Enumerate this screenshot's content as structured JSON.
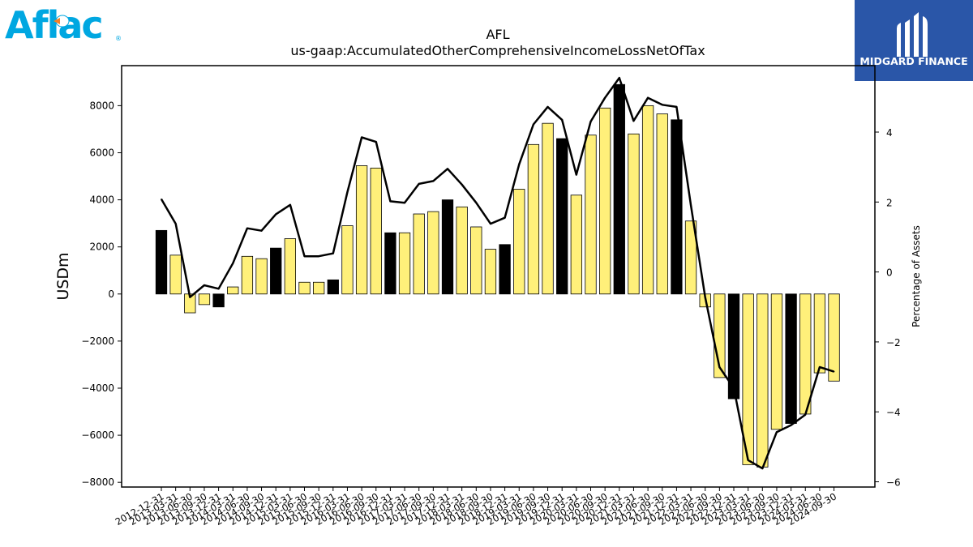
{
  "header": {
    "left_logo_text": "Aflac",
    "right_logo_text": "MIDGARD FINANCE"
  },
  "colors": {
    "bar_yellow": "#fff07a",
    "bar_black": "#000000",
    "line": "#000000",
    "midgard_bg": "#2a56a8",
    "aflac_blue": "#00a7e1",
    "aflac_orange": "#f58025"
  },
  "chart_data": {
    "type": "bar",
    "title": "AFL",
    "subtitle": "us-gaap:AccumulatedOtherComprehensiveIncomeLossNetOfTax",
    "ylabel": "USDm",
    "y2label": "Percentage of Assets",
    "ylim": [
      -8200,
      9700
    ],
    "y2lim": [
      -6.15,
      5.9
    ],
    "yticks": [
      -8000,
      -6000,
      -4000,
      -2000,
      0,
      2000,
      4000,
      6000,
      8000
    ],
    "y2ticks": [
      -6,
      -4,
      -2,
      0,
      2,
      4
    ],
    "grid": false,
    "categories": [
      "2012-12-31",
      "2013-03-31",
      "2013-06-30",
      "2013-09-30",
      "2013-12-31",
      "2014-03-31",
      "2014-06-30",
      "2014-09-30",
      "2014-12-31",
      "2015-03-31",
      "2015-06-30",
      "2015-09-30",
      "2015-12-31",
      "2016-03-31",
      "2016-06-30",
      "2016-09-30",
      "2016-12-31",
      "2017-03-31",
      "2017-06-30",
      "2017-09-30",
      "2017-12-31",
      "2018-03-31",
      "2018-06-30",
      "2018-09-30",
      "2018-12-31",
      "2019-03-31",
      "2019-06-30",
      "2019-09-30",
      "2019-12-31",
      "2020-03-31",
      "2020-06-30",
      "2020-09-30",
      "2020-12-31",
      "2021-03-31",
      "2021-06-30",
      "2021-09-30",
      "2021-12-31",
      "2022-03-31",
      "2022-06-30",
      "2022-09-30",
      "2022-12-31",
      "2023-03-31",
      "2023-06-30",
      "2023-09-30",
      "2023-12-31",
      "2024-03-31",
      "2024-06-30",
      "2024-09-30"
    ],
    "series": [
      {
        "type": "bar",
        "values": [
          2700,
          1650,
          -800,
          -450,
          -550,
          300,
          1600,
          1500,
          1950,
          2350,
          500,
          500,
          600,
          2900,
          5450,
          5350,
          2600,
          2600,
          3400,
          3500,
          4000,
          3700,
          2850,
          1900,
          2100,
          4450,
          6350,
          7250,
          6600,
          4200,
          6750,
          7900,
          8900,
          6800,
          8000,
          7650,
          7400,
          3100,
          -550,
          -3550,
          -4450,
          -7250,
          -7350,
          -5750,
          -5500,
          -5100,
          -3350,
          -3700
        ],
        "highlight_black": [
          true,
          false,
          false,
          false,
          true,
          false,
          false,
          false,
          true,
          false,
          false,
          false,
          true,
          false,
          false,
          false,
          true,
          false,
          false,
          false,
          true,
          false,
          false,
          false,
          true,
          false,
          false,
          false,
          true,
          false,
          false,
          false,
          true,
          false,
          false,
          false,
          true,
          false,
          false,
          false,
          true,
          false,
          false,
          false,
          true,
          false,
          false,
          false
        ]
      },
      {
        "type": "line",
        "axis": "y2",
        "values": [
          2.08,
          1.38,
          -0.72,
          -0.38,
          -0.48,
          0.25,
          1.25,
          1.18,
          1.65,
          1.92,
          0.45,
          0.45,
          0.53,
          2.28,
          3.85,
          3.72,
          2.02,
          1.98,
          2.52,
          2.6,
          2.95,
          2.5,
          1.98,
          1.38,
          1.55,
          3.08,
          4.22,
          4.72,
          4.35,
          2.78,
          4.3,
          4.98,
          5.55,
          4.32,
          4.98,
          4.78,
          4.72,
          1.92,
          -0.72,
          -2.72,
          -3.32,
          -5.38,
          -5.62,
          -4.58,
          -4.38,
          -4.08,
          -2.72,
          -2.85
        ]
      }
    ]
  }
}
